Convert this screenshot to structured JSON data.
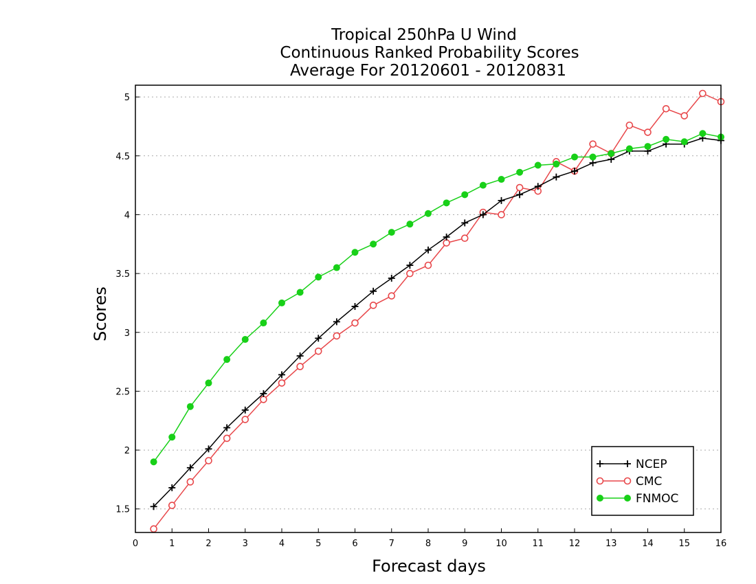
{
  "chart_data": {
    "type": "line",
    "title": [
      "Tropical 250hPa U Wind",
      "Continuous Ranked Probability Scores",
      "Average For 20120601 - 20120831"
    ],
    "xlabel": "Forecast days",
    "ylabel": "Scores",
    "xlim": [
      0,
      16
    ],
    "ylim": [
      1.3,
      5.1
    ],
    "xticks": [
      0,
      1,
      2,
      3,
      4,
      5,
      6,
      7,
      8,
      9,
      10,
      11,
      12,
      13,
      14,
      15,
      16
    ],
    "xtick_labels": [
      "0",
      "1",
      "2",
      "3",
      "4",
      "5",
      "6",
      "7",
      "8",
      "9",
      "10",
      "11",
      "12",
      "13",
      "14",
      "15",
      "16"
    ],
    "yticks": [
      1.5,
      2,
      2.5,
      3,
      3.5,
      4,
      4.5,
      5
    ],
    "ytick_labels": [
      "1.5",
      "2",
      "2.5",
      "3",
      "3.5",
      "4",
      "4.5",
      "5"
    ],
    "grid": "horizontal dotted",
    "legend_position": "bottom-right",
    "x": [
      0.5,
      1,
      1.5,
      2,
      2.5,
      3,
      3.5,
      4,
      4.5,
      5,
      5.5,
      6,
      6.5,
      7,
      7.5,
      8,
      8.5,
      9,
      9.5,
      10,
      10.5,
      11,
      11.5,
      12,
      12.5,
      13,
      13.5,
      14,
      14.5,
      15,
      15.5,
      16
    ],
    "series": [
      {
        "name": "NCEP",
        "color": "#000000",
        "marker": "plus",
        "values": [
          1.52,
          1.68,
          1.85,
          2.01,
          2.19,
          2.34,
          2.48,
          2.64,
          2.8,
          2.95,
          3.09,
          3.22,
          3.35,
          3.46,
          3.57,
          3.7,
          3.81,
          3.93,
          4.0,
          4.12,
          4.17,
          4.24,
          4.32,
          4.37,
          4.44,
          4.47,
          4.54,
          4.54,
          4.6,
          4.6,
          4.65,
          4.63
        ]
      },
      {
        "name": "CMC",
        "color": "#e8474a",
        "marker": "open-circle",
        "values": [
          1.33,
          1.53,
          1.73,
          1.91,
          2.1,
          2.26,
          2.43,
          2.57,
          2.71,
          2.84,
          2.97,
          3.08,
          3.23,
          3.31,
          3.5,
          3.57,
          3.76,
          3.8,
          4.02,
          4.0,
          4.23,
          4.2,
          4.45,
          4.37,
          4.6,
          4.52,
          4.76,
          4.7,
          4.9,
          4.84,
          5.03,
          4.96
        ]
      },
      {
        "name": "FNMOC",
        "color": "#18d018",
        "marker": "filled-circle",
        "values": [
          1.9,
          2.11,
          2.37,
          2.57,
          2.77,
          2.94,
          3.08,
          3.25,
          3.34,
          3.47,
          3.55,
          3.68,
          3.75,
          3.85,
          3.92,
          4.01,
          4.1,
          4.17,
          4.25,
          4.3,
          4.36,
          4.42,
          4.43,
          4.49,
          4.49,
          4.52,
          4.56,
          4.58,
          4.64,
          4.62,
          4.69,
          4.66
        ]
      }
    ]
  }
}
